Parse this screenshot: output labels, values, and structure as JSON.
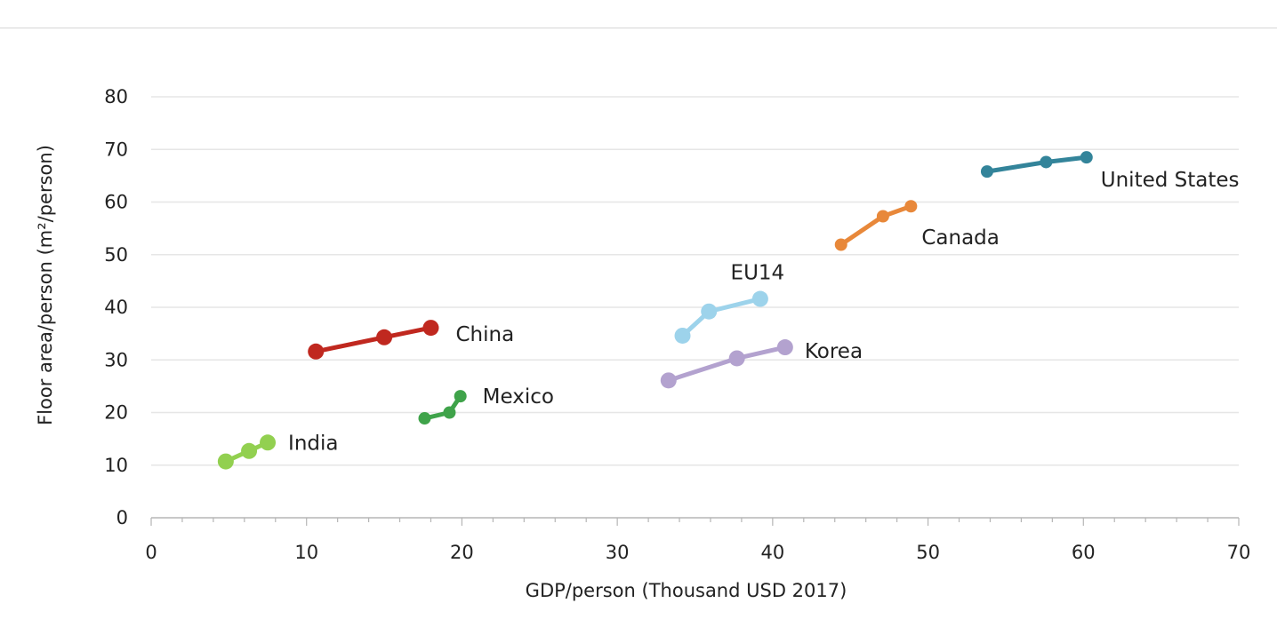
{
  "chart_data": {
    "type": "line",
    "xlabel": "GDP/person (Thousand USD 2017)",
    "ylabel": "Floor area/person  (m²/person)",
    "xlim": [
      0,
      70
    ],
    "ylim": [
      0,
      80
    ],
    "x_ticks": [
      0,
      10,
      20,
      30,
      40,
      50,
      60,
      70
    ],
    "y_ticks": [
      0,
      10,
      20,
      30,
      40,
      50,
      60,
      70,
      80
    ],
    "grid": "horizontal",
    "legend": "none",
    "series": [
      {
        "name": "India",
        "color": "#92d050",
        "points": [
          [
            4.8,
            10.7
          ],
          [
            6.3,
            12.7
          ],
          [
            7.5,
            14.3
          ]
        ]
      },
      {
        "name": "China",
        "color": "#c0281f",
        "points": [
          [
            10.6,
            31.6
          ],
          [
            15.0,
            34.3
          ],
          [
            18.0,
            36.1
          ]
        ]
      },
      {
        "name": "Mexico",
        "color": "#3fa34a",
        "points": [
          [
            17.6,
            18.9
          ],
          [
            19.2,
            20.0
          ],
          [
            19.9,
            23.1
          ]
        ]
      },
      {
        "name": "EU14",
        "color": "#9dd3eb",
        "points": [
          [
            34.2,
            34.6
          ],
          [
            35.9,
            39.2
          ],
          [
            39.2,
            41.6
          ]
        ]
      },
      {
        "name": "Korea",
        "color": "#b3a2cf",
        "points": [
          [
            33.3,
            26.1
          ],
          [
            37.7,
            30.3
          ],
          [
            40.8,
            32.4
          ]
        ]
      },
      {
        "name": "Canada",
        "color": "#e8883a",
        "points": [
          [
            44.4,
            51.9
          ],
          [
            47.1,
            57.3
          ],
          [
            48.9,
            59.2
          ]
        ]
      },
      {
        "name": "United States",
        "color": "#33849a",
        "points": [
          [
            53.8,
            65.8
          ],
          [
            57.6,
            67.6
          ],
          [
            60.2,
            68.5
          ]
        ]
      }
    ]
  }
}
